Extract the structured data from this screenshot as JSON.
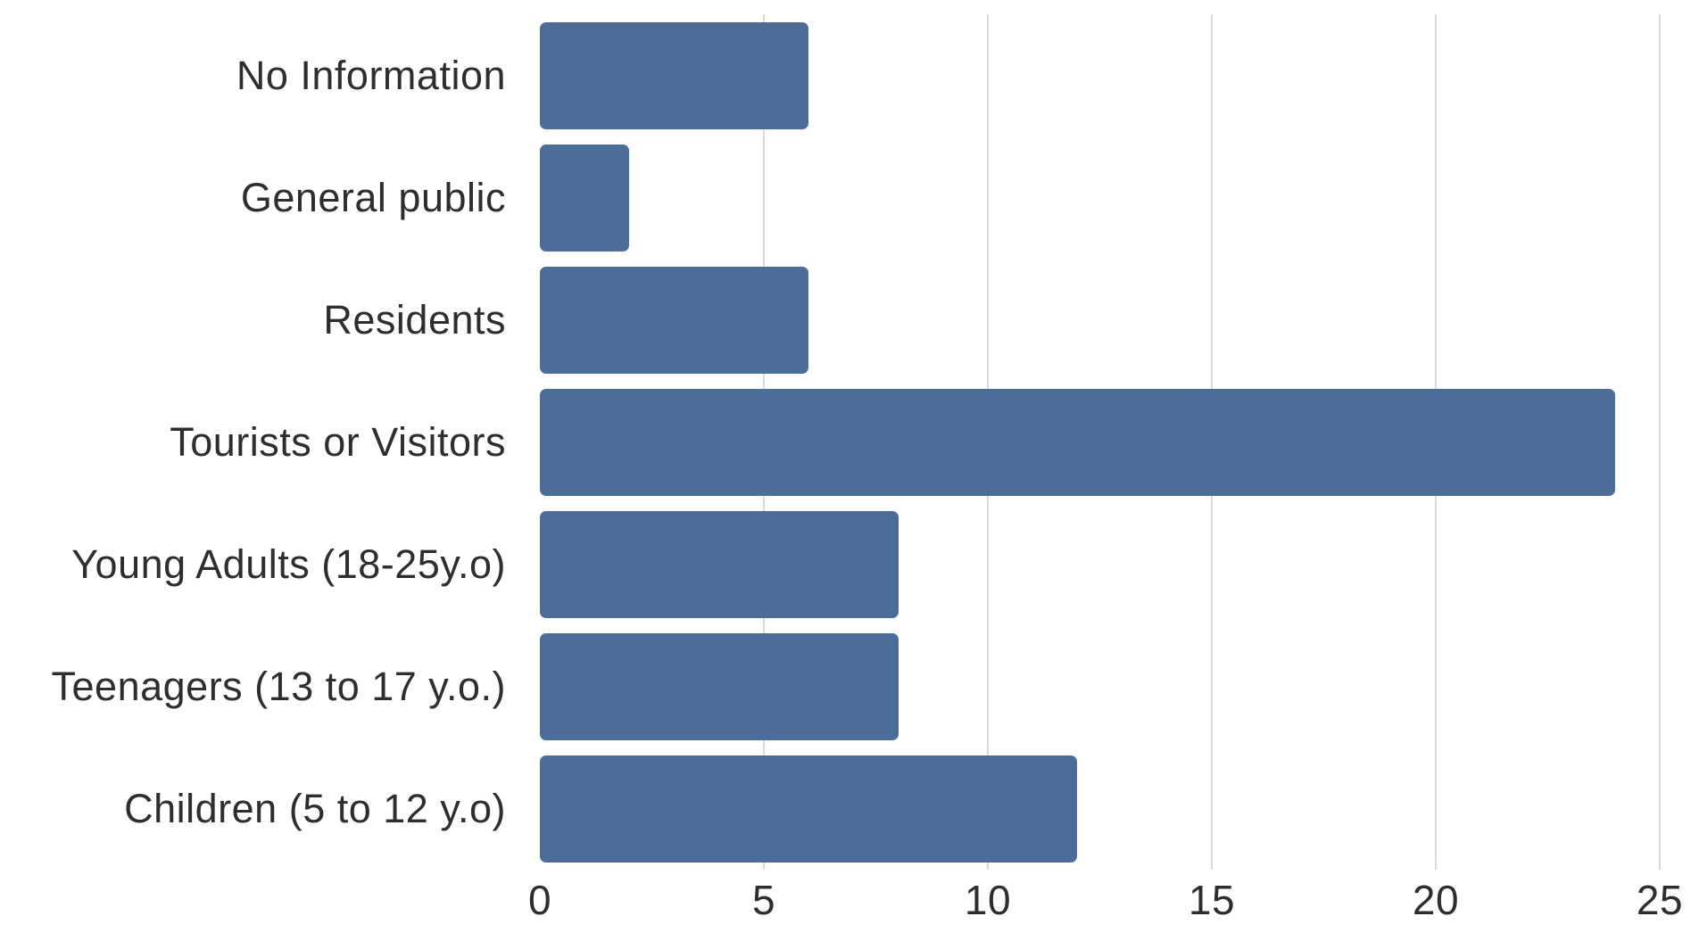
{
  "chart_data": {
    "type": "bar",
    "orientation": "horizontal",
    "title": "",
    "xlabel": "",
    "ylabel": "",
    "categories": [
      "No Information",
      "General public",
      "Residents",
      "Tourists or Visitors",
      "Young Adults (18-25y.o)",
      "Teenagers (13 to 17 y.o.)",
      "Children (5 to 12 y.o)"
    ],
    "values": [
      6,
      2,
      6,
      24,
      8,
      8,
      12
    ],
    "xlim": [
      0,
      25
    ],
    "xticks": [
      0,
      5,
      10,
      15,
      20,
      25
    ],
    "grid": true,
    "legend": false,
    "bar_color": "#4d6d99",
    "gridline_color": "#d9d9d9",
    "text_color": "#2e2e2e",
    "background_color": "#ffffff"
  }
}
